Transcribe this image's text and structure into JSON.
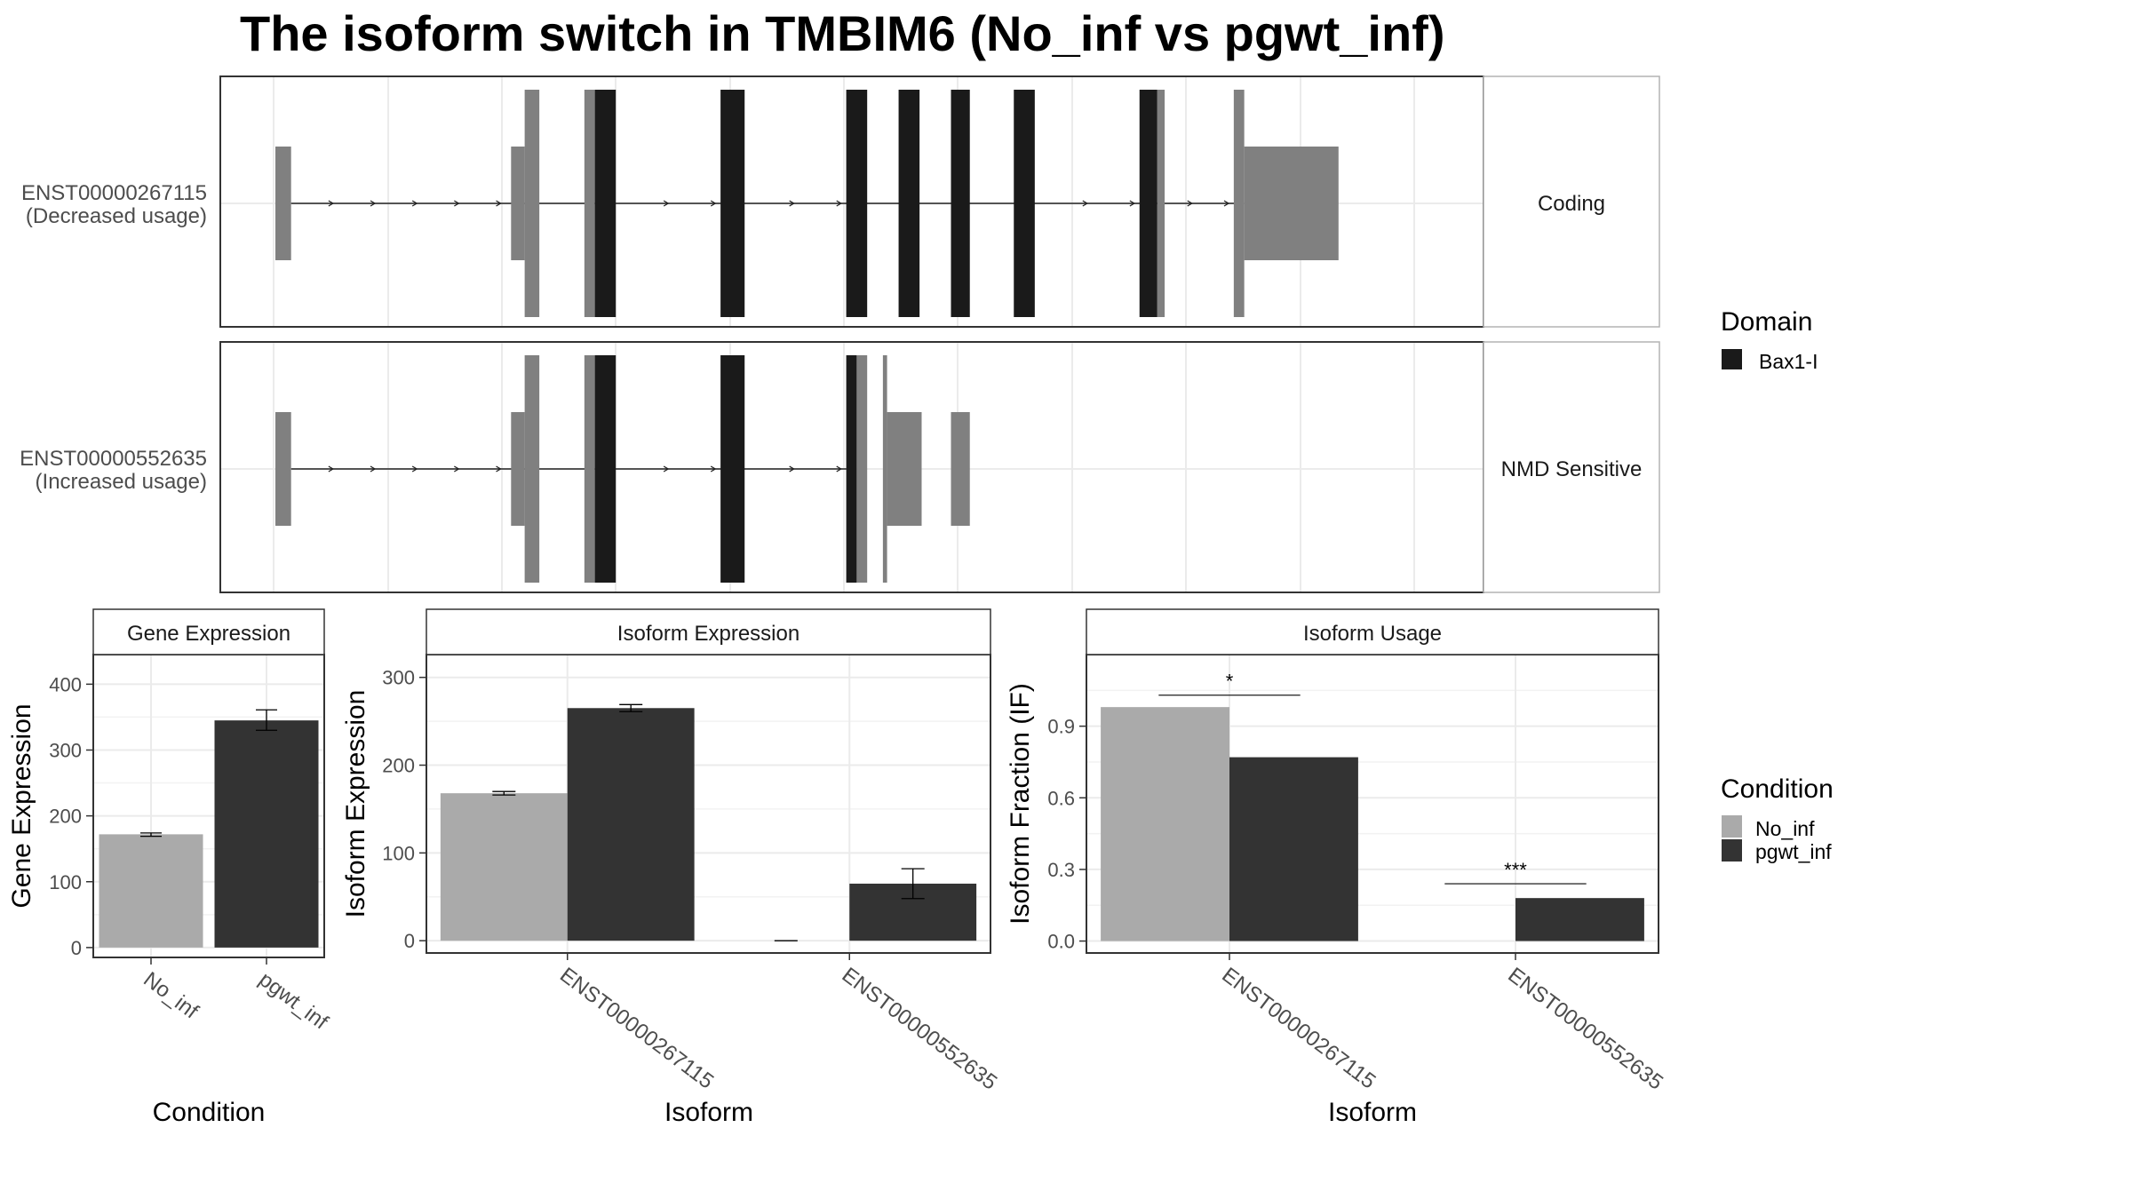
{
  "title": "The isoform switch in TMBIM6 (No_inf vs pgwt_inf)",
  "colors": {
    "no_inf": "#aaaaaa",
    "pgwt_inf": "#333333",
    "domain_bax": "#1a1a1a",
    "utr": "#808080",
    "strip_bg": "#ffffff",
    "grid": "#ebebeb"
  },
  "transcripts": {
    "x_range": [
      0,
      110
    ],
    "rows": [
      {
        "id": "ENST00000267115",
        "label_line2": "(Decreased usage)",
        "facet": "Coding",
        "segments": [
          {
            "start": 0.0,
            "end": 1.5,
            "kind": "utr",
            "height": "medium"
          },
          {
            "start": 22.5,
            "end": 23.8,
            "kind": "utr",
            "height": "medium"
          },
          {
            "start": 23.8,
            "end": 25.2,
            "kind": "utr",
            "height": "tall"
          },
          {
            "start": 29.5,
            "end": 30.5,
            "kind": "utr",
            "height": "tall"
          },
          {
            "start": 30.5,
            "end": 32.5,
            "kind": "domain",
            "height": "tall"
          },
          {
            "start": 42.5,
            "end": 44.8,
            "kind": "domain",
            "height": "tall"
          },
          {
            "start": 54.5,
            "end": 56.5,
            "kind": "domain",
            "height": "tall"
          },
          {
            "start": 59.5,
            "end": 61.5,
            "kind": "domain",
            "height": "tall"
          },
          {
            "start": 64.5,
            "end": 66.3,
            "kind": "domain",
            "height": "tall"
          },
          {
            "start": 70.5,
            "end": 72.5,
            "kind": "domain",
            "height": "tall"
          },
          {
            "start": 82.5,
            "end": 84.2,
            "kind": "domain",
            "height": "tall"
          },
          {
            "start": 84.2,
            "end": 84.9,
            "kind": "utr",
            "height": "tall"
          },
          {
            "start": 91.5,
            "end": 92.5,
            "kind": "utr",
            "height": "tall"
          },
          {
            "start": 92.5,
            "end": 101.5,
            "kind": "utr",
            "height": "medium"
          }
        ],
        "line": [
          1.5,
          92.5
        ],
        "arrows": [
          5.5,
          9.5,
          13.5,
          17.5,
          21.5,
          37.5,
          42.0,
          49.5,
          54.0,
          77.5,
          82.0,
          87.5,
          91.0
        ]
      },
      {
        "id": "ENST00000552635",
        "label_line2": "(Increased usage)",
        "facet": "NMD Sensitive",
        "segments": [
          {
            "start": 0.0,
            "end": 1.5,
            "kind": "utr",
            "height": "medium"
          },
          {
            "start": 22.5,
            "end": 23.8,
            "kind": "utr",
            "height": "medium"
          },
          {
            "start": 23.8,
            "end": 25.2,
            "kind": "utr",
            "height": "tall"
          },
          {
            "start": 29.5,
            "end": 30.5,
            "kind": "utr",
            "height": "tall"
          },
          {
            "start": 30.5,
            "end": 32.5,
            "kind": "domain",
            "height": "tall"
          },
          {
            "start": 42.5,
            "end": 44.8,
            "kind": "domain",
            "height": "tall"
          },
          {
            "start": 54.5,
            "end": 55.5,
            "kind": "domain",
            "height": "tall"
          },
          {
            "start": 55.5,
            "end": 56.5,
            "kind": "utr",
            "height": "tall"
          },
          {
            "start": 58.0,
            "end": 58.4,
            "kind": "utr",
            "height": "tall"
          },
          {
            "start": 58.4,
            "end": 61.7,
            "kind": "utr",
            "height": "medium"
          },
          {
            "start": 64.5,
            "end": 66.3,
            "kind": "utr",
            "height": "medium"
          }
        ],
        "line": [
          1.5,
          54.5
        ],
        "arrows": [
          5.5,
          9.5,
          13.5,
          17.5,
          21.5,
          37.5,
          42.0,
          49.5,
          54.0
        ]
      }
    ]
  },
  "legend_domain": {
    "title": "Domain",
    "items": [
      {
        "label": "Bax1-I",
        "color": "#1a1a1a"
      }
    ]
  },
  "legend_condition": {
    "title": "Condition",
    "items": [
      {
        "label": "No_inf",
        "color": "#aaaaaa"
      },
      {
        "label": "pgwt_inf",
        "color": "#333333"
      }
    ]
  },
  "chart_data": [
    {
      "type": "bar",
      "title": "Gene Expression",
      "xlabel": "Condition",
      "ylabel": "Gene Expression",
      "categories": [
        "No_inf",
        "pgwt_inf"
      ],
      "values": [
        172,
        345
      ],
      "error": [
        [
          169,
          174
        ],
        [
          330,
          361
        ]
      ],
      "ylim": [
        -15,
        445
      ],
      "yticks": [
        0,
        100,
        200,
        300,
        400
      ],
      "grid": true
    },
    {
      "type": "bar",
      "title": "Isoform Expression",
      "xlabel": "Isoform",
      "ylabel": "Isoform Expression",
      "categories": [
        "ENST00000267115",
        "ENST00000552635"
      ],
      "series": [
        {
          "name": "No_inf",
          "values": [
            168,
            0
          ],
          "error": [
            [
              166,
              170
            ],
            [
              0,
              0
            ]
          ]
        },
        {
          "name": "pgwt_inf",
          "values": [
            265,
            65
          ],
          "error": [
            [
              261,
              269
            ],
            [
              48,
              82
            ]
          ]
        }
      ],
      "ylim": [
        -14,
        326
      ],
      "yticks": [
        0,
        100,
        200,
        300
      ],
      "grid": true
    },
    {
      "type": "bar",
      "title": "Isoform Usage",
      "xlabel": "Isoform",
      "ylabel": "Isoform Fraction (IF)",
      "categories": [
        "ENST00000267115",
        "ENST00000552635"
      ],
      "series": [
        {
          "name": "No_inf",
          "values": [
            0.98,
            0.0
          ]
        },
        {
          "name": "pgwt_inf",
          "values": [
            0.77,
            0.18
          ]
        }
      ],
      "significance": [
        {
          "category": 0,
          "label": "*",
          "y": 1.03
        },
        {
          "category": 1,
          "label": "***",
          "y": 0.24
        }
      ],
      "ylim": [
        -0.05,
        1.2
      ],
      "yticks": [
        0.0,
        0.3,
        0.6,
        0.9
      ],
      "ytick_labels": [
        "0.0",
        "0.3",
        "0.6",
        "0.9"
      ],
      "grid": true
    }
  ]
}
